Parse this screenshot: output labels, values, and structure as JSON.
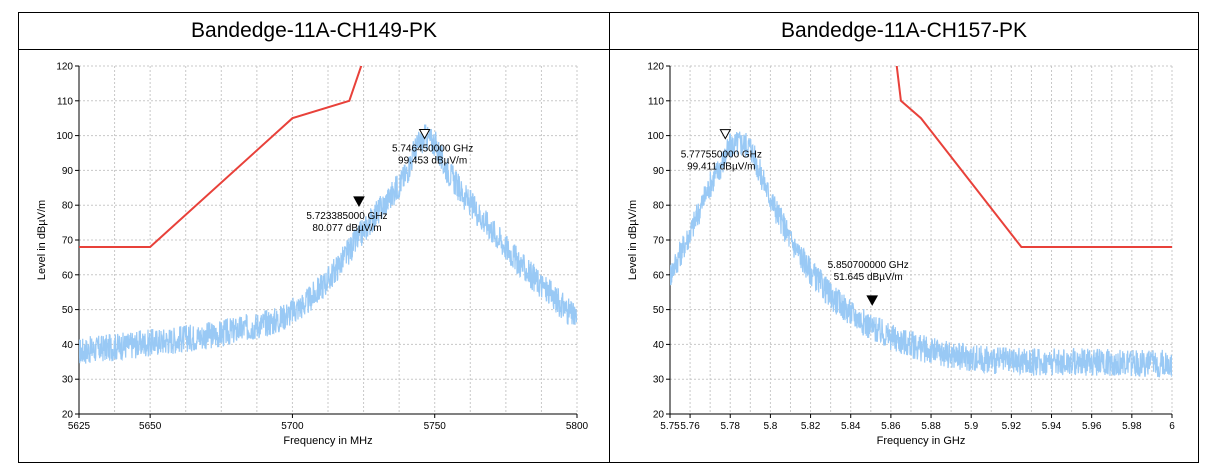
{
  "header": {
    "caption": ""
  },
  "table": {
    "headers": [
      "Bandedge-11A-CH149-PK",
      "Bandedge-11A-CH157-PK"
    ]
  },
  "colors": {
    "trace": "#99c9f5",
    "limit": "#e8413a",
    "grid": "#c8c8c8"
  },
  "chart_data": [
    {
      "type": "line",
      "title": "Bandedge-11A-CH149-PK",
      "xlabel": "Frequency in MHz",
      "ylabel": "Level in dBµV/m",
      "xlim": [
        5625,
        5800
      ],
      "ylim": [
        20,
        120
      ],
      "x_ticks": [
        5625,
        5650,
        5700,
        5750,
        5800
      ],
      "x_tick_labels": [
        "5625",
        "5650",
        "5700",
        "5750",
        "5800"
      ],
      "y_ticks": [
        20,
        30,
        40,
        50,
        60,
        70,
        80,
        90,
        100,
        110,
        120
      ],
      "grid": true,
      "series": [
        {
          "kind": "measurement",
          "points": [
            [
              5625,
              38
            ],
            [
              5635,
              39
            ],
            [
              5645,
              40
            ],
            [
              5655,
              41
            ],
            [
              5665,
              42
            ],
            [
              5675,
              43
            ],
            [
              5685,
              45
            ],
            [
              5695,
              47
            ],
            [
              5705,
              52
            ],
            [
              5713,
              59
            ],
            [
              5720,
              67
            ],
            [
              5728,
              76
            ],
            [
              5735,
              83
            ],
            [
              5740,
              89
            ],
            [
              5743,
              96
            ],
            [
              5746.45,
              99.453
            ],
            [
              5750,
              98
            ],
            [
              5753,
              92
            ],
            [
              5760,
              83
            ],
            [
              5770,
              73
            ],
            [
              5780,
              63
            ],
            [
              5790,
              55
            ],
            [
              5800,
              47
            ]
          ]
        },
        {
          "kind": "limit",
          "points": [
            [
              5625,
              68
            ],
            [
              5650,
              68
            ],
            [
              5700,
              105
            ],
            [
              5720,
              110
            ],
            [
              5725,
              122
            ]
          ]
        }
      ],
      "markers": [
        {
          "x": 5746.45,
          "y": 99.453,
          "style": "hollow",
          "label1": "5.746450000 GHz",
          "label2": "99.453 dBµV/m"
        },
        {
          "x": 5723.385,
          "y": 80.077,
          "style": "filled",
          "label1": "5.723385000 GHz",
          "label2": "80.077 dBµV/m"
        }
      ]
    },
    {
      "type": "line",
      "title": "Bandedge-11A-CH157-PK",
      "xlabel": "Frequency in GHz",
      "ylabel": "Level in dBµV/m",
      "xlim": [
        5.75,
        6.0
      ],
      "ylim": [
        20,
        120
      ],
      "x_ticks": [
        5.75,
        5.76,
        5.78,
        5.8,
        5.82,
        5.84,
        5.86,
        5.88,
        5.9,
        5.92,
        5.94,
        5.96,
        5.98,
        6.0
      ],
      "x_tick_labels": [
        "5.75",
        "5.76",
        "5.78",
        "5.8",
        "5.82",
        "5.84",
        "5.86",
        "5.88",
        "5.9",
        "5.92",
        "5.94",
        "5.96",
        "5.98",
        "6"
      ],
      "y_ticks": [
        20,
        30,
        40,
        50,
        60,
        70,
        80,
        90,
        100,
        110,
        120
      ],
      "grid": true,
      "series": [
        {
          "kind": "measurement",
          "points": [
            [
              5.75,
              60
            ],
            [
              5.755,
              66
            ],
            [
              5.76,
              72
            ],
            [
              5.765,
              79
            ],
            [
              5.77,
              86
            ],
            [
              5.775,
              91
            ],
            [
              5.7775,
              94
            ],
            [
              5.78,
              97
            ],
            [
              5.785,
              98
            ],
            [
              5.79,
              97
            ],
            [
              5.795,
              89
            ],
            [
              5.8,
              82
            ],
            [
              5.81,
              70
            ],
            [
              5.82,
              61
            ],
            [
              5.83,
              54
            ],
            [
              5.84,
              49
            ],
            [
              5.85,
              45
            ],
            [
              5.86,
              42
            ],
            [
              5.87,
              40
            ],
            [
              5.88,
              38
            ],
            [
              5.9,
              36
            ],
            [
              5.92,
              35
            ],
            [
              5.94,
              35
            ],
            [
              5.96,
              35
            ],
            [
              5.98,
              34.5
            ],
            [
              6.0,
              34.5
            ]
          ]
        },
        {
          "kind": "limit",
          "points": [
            [
              5.8625,
              122
            ],
            [
              5.865,
              110
            ],
            [
              5.875,
              105
            ],
            [
              5.925,
              68
            ],
            [
              6.0,
              68
            ]
          ]
        }
      ],
      "markers": [
        {
          "x": 5.77755,
          "y": 99.411,
          "style": "hollow",
          "label1": "5.777550000 GHz",
          "label2": "99.411 dBµV/m"
        },
        {
          "x": 5.8507,
          "y": 51.645,
          "style": "filled",
          "label1": "5.850700000 GHz",
          "label2": "51.645 dBµV/m"
        }
      ]
    }
  ]
}
